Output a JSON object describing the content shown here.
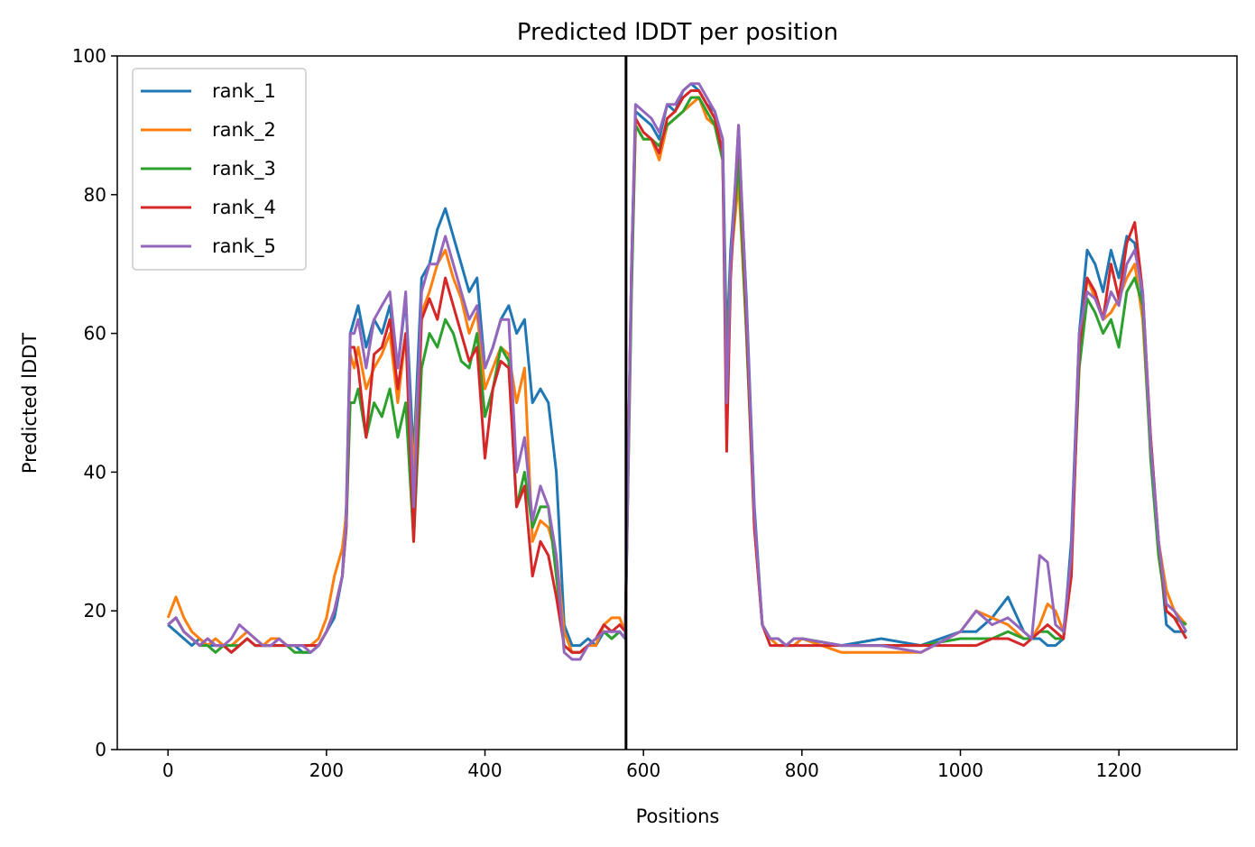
{
  "chart_data": {
    "type": "line",
    "title": "Predicted lDDT per position",
    "xlabel": "Positions",
    "ylabel": "Predicted lDDT",
    "xlim": [
      -64,
      1349
    ],
    "ylim": [
      0,
      100
    ],
    "xticks": [
      0,
      200,
      400,
      600,
      800,
      1000,
      1200
    ],
    "yticks": [
      0,
      20,
      40,
      60,
      80,
      100
    ],
    "grid": false,
    "legend_position": "top-left",
    "vline": {
      "x": 578,
      "color": "#000000"
    },
    "x": [
      0,
      10,
      20,
      30,
      40,
      50,
      60,
      70,
      80,
      90,
      100,
      110,
      120,
      130,
      140,
      150,
      160,
      170,
      180,
      190,
      200,
      210,
      220,
      225,
      230,
      235,
      240,
      250,
      260,
      270,
      280,
      290,
      300,
      310,
      320,
      330,
      340,
      350,
      360,
      370,
      380,
      390,
      400,
      410,
      420,
      430,
      440,
      450,
      460,
      470,
      480,
      490,
      500,
      510,
      520,
      530,
      540,
      550,
      560,
      570,
      577,
      585,
      590,
      600,
      610,
      620,
      630,
      640,
      650,
      660,
      670,
      680,
      690,
      700,
      705,
      710,
      720,
      730,
      740,
      750,
      760,
      770,
      780,
      790,
      800,
      850,
      900,
      950,
      1000,
      1020,
      1040,
      1060,
      1080,
      1090,
      1100,
      1110,
      1120,
      1130,
      1140,
      1150,
      1160,
      1170,
      1180,
      1190,
      1200,
      1210,
      1220,
      1230,
      1240,
      1250,
      1260,
      1270,
      1285
    ],
    "series": [
      {
        "name": "rank_1",
        "color": "#1f77b4",
        "values": [
          18,
          17,
          16,
          15,
          16,
          15,
          15,
          15,
          14,
          15,
          16,
          15,
          15,
          15,
          16,
          15,
          15,
          14,
          14,
          15,
          17,
          19,
          25,
          35,
          60,
          62,
          64,
          58,
          62,
          60,
          64,
          55,
          65,
          42,
          68,
          70,
          75,
          78,
          74,
          70,
          66,
          68,
          55,
          58,
          62,
          64,
          60,
          62,
          50,
          52,
          50,
          40,
          18,
          15,
          15,
          16,
          15,
          17,
          16,
          17,
          16,
          70,
          92,
          91,
          90,
          88,
          93,
          92,
          95,
          96,
          95,
          93,
          92,
          88,
          58,
          72,
          88,
          65,
          35,
          18,
          16,
          16,
          15,
          15,
          16,
          15,
          16,
          15,
          17,
          17,
          19,
          22,
          17,
          16,
          16,
          15,
          15,
          16,
          30,
          60,
          72,
          70,
          66,
          72,
          68,
          74,
          73,
          65,
          45,
          30,
          18,
          17,
          17
        ]
      },
      {
        "name": "rank_2",
        "color": "#ff7f0e",
        "values": [
          19,
          22,
          19,
          17,
          16,
          15,
          16,
          15,
          15,
          16,
          17,
          16,
          15,
          16,
          16,
          15,
          15,
          15,
          15,
          16,
          19,
          25,
          29,
          34,
          57,
          55,
          58,
          52,
          55,
          57,
          60,
          50,
          60,
          40,
          63,
          66,
          70,
          72,
          68,
          65,
          60,
          63,
          52,
          55,
          58,
          57,
          50,
          55,
          30,
          33,
          32,
          28,
          17,
          14,
          14,
          15,
          15,
          18,
          19,
          19,
          17,
          68,
          90,
          88,
          88,
          85,
          90,
          91,
          92,
          93,
          94,
          91,
          90,
          85,
          55,
          70,
          82,
          60,
          32,
          18,
          16,
          15,
          15,
          15,
          16,
          14,
          14,
          14,
          17,
          20,
          19,
          18,
          16,
          16,
          18,
          21,
          20,
          17,
          25,
          58,
          68,
          65,
          62,
          63,
          65,
          68,
          70,
          62,
          43,
          30,
          23,
          20,
          18
        ]
      },
      {
        "name": "rank_3",
        "color": "#2ca02c",
        "values": [
          18,
          19,
          17,
          16,
          15,
          15,
          14,
          15,
          15,
          15,
          16,
          15,
          15,
          15,
          15,
          15,
          14,
          14,
          14,
          15,
          17,
          20,
          25,
          32,
          50,
          50,
          52,
          45,
          50,
          48,
          52,
          45,
          50,
          30,
          55,
          60,
          58,
          62,
          60,
          56,
          55,
          60,
          48,
          52,
          58,
          56,
          35,
          40,
          32,
          35,
          35,
          25,
          15,
          14,
          14,
          15,
          16,
          17,
          16,
          17,
          16,
          66,
          90,
          88,
          88,
          87,
          90,
          91,
          92,
          94,
          94,
          92,
          90,
          85,
          55,
          70,
          85,
          60,
          33,
          18,
          16,
          16,
          15,
          16,
          16,
          15,
          15,
          15,
          16,
          16,
          16,
          17,
          16,
          16,
          17,
          17,
          16,
          16,
          28,
          55,
          65,
          63,
          60,
          62,
          58,
          66,
          68,
          64,
          42,
          28,
          20,
          19,
          18
        ]
      },
      {
        "name": "rank_4",
        "color": "#d62728",
        "values": [
          18,
          19,
          17,
          16,
          15,
          16,
          15,
          15,
          14,
          15,
          16,
          15,
          15,
          15,
          15,
          15,
          15,
          15,
          15,
          15,
          17,
          20,
          25,
          32,
          58,
          58,
          55,
          45,
          57,
          58,
          62,
          52,
          60,
          30,
          62,
          65,
          62,
          68,
          64,
          60,
          56,
          58,
          42,
          52,
          56,
          55,
          35,
          38,
          25,
          30,
          28,
          22,
          15,
          14,
          14,
          15,
          16,
          18,
          17,
          18,
          17,
          70,
          91,
          89,
          88,
          86,
          91,
          92,
          94,
          95,
          95,
          93,
          91,
          86,
          43,
          68,
          90,
          62,
          32,
          18,
          15,
          15,
          15,
          15,
          15,
          15,
          15,
          15,
          15,
          15,
          16,
          16,
          15,
          16,
          17,
          18,
          17,
          16,
          25,
          58,
          68,
          66,
          62,
          70,
          65,
          73,
          76,
          66,
          45,
          30,
          20,
          19,
          16
        ]
      },
      {
        "name": "rank_5",
        "color": "#9467bd",
        "values": [
          18,
          19,
          17,
          16,
          15,
          16,
          15,
          15,
          16,
          18,
          17,
          16,
          15,
          15,
          16,
          15,
          15,
          15,
          14,
          15,
          17,
          20,
          25,
          33,
          60,
          60,
          62,
          55,
          62,
          64,
          66,
          55,
          66,
          35,
          66,
          70,
          70,
          74,
          70,
          66,
          62,
          64,
          55,
          58,
          62,
          62,
          40,
          45,
          33,
          38,
          35,
          28,
          14,
          13,
          13,
          15,
          16,
          17,
          17,
          17,
          16,
          70,
          93,
          92,
          91,
          89,
          93,
          93,
          95,
          96,
          96,
          94,
          92,
          88,
          50,
          70,
          90,
          64,
          34,
          18,
          16,
          16,
          15,
          16,
          16,
          15,
          15,
          14,
          17,
          20,
          18,
          19,
          17,
          16,
          28,
          27,
          18,
          17,
          28,
          60,
          66,
          65,
          62,
          66,
          64,
          70,
          72,
          66,
          44,
          30,
          21,
          20,
          17
        ]
      }
    ]
  }
}
